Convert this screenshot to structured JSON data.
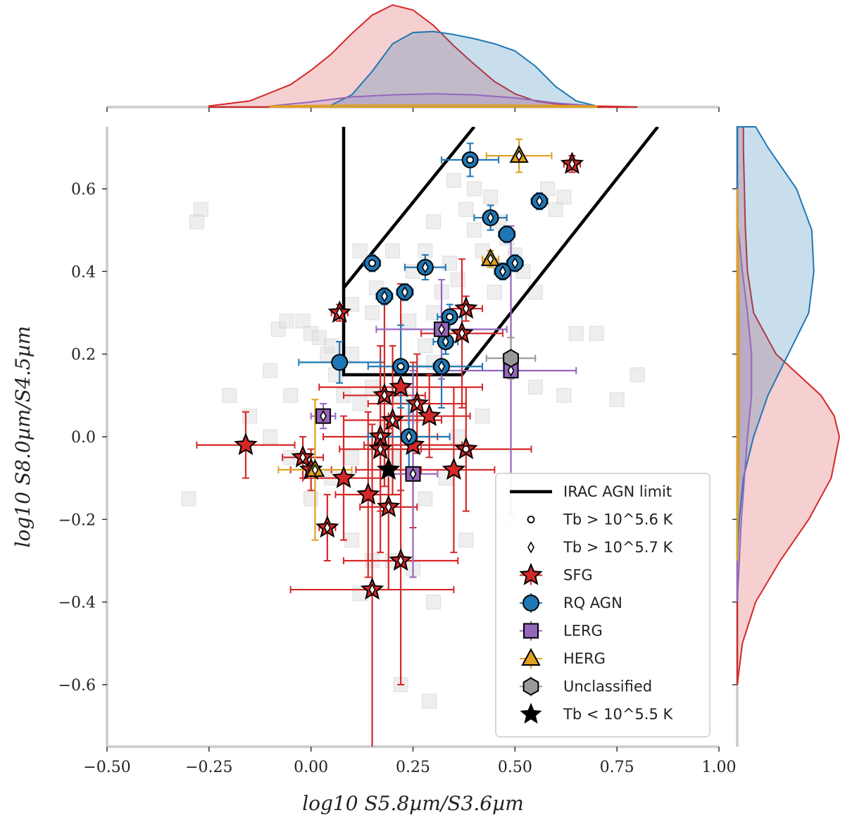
{
  "chart_data": {
    "type": "scatter",
    "xlabel": "log10 S5.8µm/S3.6µm",
    "ylabel": "log10 S8.0µm/S4.5µm",
    "xlim": [
      -0.5,
      1.0
    ],
    "ylim": [
      -0.75,
      0.75
    ],
    "x_ticks": [
      -0.5,
      -0.25,
      0.0,
      0.25,
      0.5,
      0.75,
      1.0
    ],
    "x_tick_labels": [
      "−0.50",
      "−0.25",
      "0.00",
      "0.25",
      "0.50",
      "0.75",
      "1.00"
    ],
    "y_ticks": [
      -0.6,
      -0.4,
      -0.2,
      0.0,
      0.2,
      0.4,
      0.6
    ],
    "y_tick_labels": [
      "−0.6",
      "−0.4",
      "−0.2",
      "0.0",
      "0.2",
      "0.4",
      "0.6"
    ],
    "grid": false,
    "legend_position": "bottom-right",
    "legend": [
      {
        "label": "IRAC AGN limit",
        "marker": "line"
      },
      {
        "label": "Tb > 10^5.6 K",
        "marker": "small-circle"
      },
      {
        "label": "Tb > 10^5.7 K",
        "marker": "small-diamond"
      },
      {
        "label": "SFG",
        "marker": "star",
        "color": "#d62728"
      },
      {
        "label": "RQ AGN",
        "marker": "circle",
        "color": "#1f77b4"
      },
      {
        "label": "LERG",
        "marker": "square",
        "color": "#9467bd"
      },
      {
        "label": "HERG",
        "marker": "triangle",
        "color": "#e0a020"
      },
      {
        "label": "Unclassified",
        "marker": "hexagon",
        "color": "#999999"
      },
      {
        "label": "Tb < 10^5.5 K",
        "marker": "black-star"
      }
    ],
    "agn_limit_line": [
      [
        0.08,
        0.75
      ],
      [
        0.08,
        0.36
      ],
      [
        0.08,
        0.15
      ],
      [
        0.37,
        0.15
      ],
      [
        0.85,
        0.75
      ]
    ],
    "agn_limit_upper": [
      [
        0.08,
        0.36
      ],
      [
        0.4,
        0.75
      ]
    ],
    "background_points": [
      [
        -0.3,
        -0.15
      ],
      [
        -0.27,
        0.55
      ],
      [
        -0.28,
        0.52
      ],
      [
        -0.1,
        0.16
      ],
      [
        -0.08,
        0.26
      ],
      [
        -0.06,
        0.28
      ],
      [
        -0.05,
        0.1
      ],
      [
        -0.02,
        0.28
      ],
      [
        0.0,
        0.25
      ],
      [
        0.02,
        0.24
      ],
      [
        0.04,
        0.2
      ],
      [
        0.06,
        0.15
      ],
      [
        0.08,
        0.1
      ],
      [
        0.1,
        0.2
      ],
      [
        0.12,
        0.08
      ],
      [
        0.15,
        0.12
      ],
      [
        0.18,
        0.02
      ],
      [
        0.2,
        -0.05
      ],
      [
        0.22,
        0.1
      ],
      [
        0.25,
        0.05
      ],
      [
        0.28,
        0.22
      ],
      [
        0.3,
        0.18
      ],
      [
        0.32,
        0.35
      ],
      [
        0.34,
        0.42
      ],
      [
        0.36,
        0.38
      ],
      [
        0.38,
        0.55
      ],
      [
        0.4,
        0.5
      ],
      [
        0.42,
        0.45
      ],
      [
        0.44,
        0.58
      ],
      [
        0.46,
        0.52
      ],
      [
        0.48,
        0.48
      ],
      [
        0.5,
        0.44
      ],
      [
        0.52,
        0.4
      ],
      [
        0.55,
        0.35
      ],
      [
        0.58,
        0.6
      ],
      [
        0.6,
        0.55
      ],
      [
        0.62,
        0.58
      ],
      [
        0.65,
        0.25
      ],
      [
        0.2,
        0.45
      ],
      [
        0.25,
        0.4
      ],
      [
        0.3,
        0.52
      ],
      [
        0.35,
        0.62
      ],
      [
        0.4,
        0.6
      ],
      [
        0.15,
        0.3
      ],
      [
        0.1,
        -0.05
      ],
      [
        0.05,
        -0.1
      ],
      [
        0.0,
        -0.15
      ],
      [
        -0.05,
        -0.05
      ],
      [
        -0.1,
        0.0
      ],
      [
        -0.15,
        0.05
      ],
      [
        -0.2,
        0.1
      ],
      [
        0.1,
        -0.25
      ],
      [
        0.15,
        -0.3
      ],
      [
        0.2,
        -0.3
      ],
      [
        0.25,
        -0.32
      ],
      [
        0.3,
        -0.4
      ],
      [
        0.22,
        -0.6
      ],
      [
        0.29,
        -0.64
      ],
      [
        0.12,
        -0.38
      ],
      [
        0.36,
        0.0
      ],
      [
        0.42,
        0.05
      ],
      [
        0.55,
        0.12
      ],
      [
        0.7,
        0.25
      ],
      [
        0.8,
        0.15
      ],
      [
        0.75,
        0.09
      ],
      [
        0.62,
        0.1
      ],
      [
        0.48,
        -0.2
      ],
      [
        0.38,
        -0.25
      ],
      [
        0.33,
        -0.1
      ],
      [
        0.28,
        -0.15
      ],
      [
        0.24,
        0.28
      ],
      [
        0.16,
        0.36
      ],
      [
        0.1,
        0.32
      ],
      [
        0.05,
        0.22
      ],
      [
        0.12,
        0.45
      ],
      [
        0.3,
        0.3
      ],
      [
        0.45,
        0.35
      ],
      [
        0.28,
        0.45
      ]
    ],
    "series": [
      {
        "name": "SFG",
        "marker": "star",
        "color": "#d62728",
        "points": [
          {
            "x": 0.64,
            "y": 0.66,
            "xe": 0.02,
            "ye": 0.02,
            "tb": "diamond"
          },
          {
            "x": -0.16,
            "y": -0.02,
            "xe": 0.12,
            "ye": 0.08
          },
          {
            "x": 0.07,
            "y": 0.3,
            "xe": 0.02,
            "ye": 0.02,
            "tb": "diamond"
          },
          {
            "x": 0.38,
            "y": 0.31,
            "xe": 0.04,
            "ye": 0.03,
            "tb": "diamond"
          },
          {
            "x": 0.37,
            "y": 0.25,
            "xe": 0.1,
            "ye": 0.18,
            "tb": "diamond"
          },
          {
            "x": 0.22,
            "y": 0.12,
            "xe": 0.2,
            "ye": 0.25
          },
          {
            "x": 0.18,
            "y": 0.1,
            "xe": 0.1,
            "ye": 0.22,
            "tb": "diamond"
          },
          {
            "x": 0.26,
            "y": 0.08,
            "xe": 0.12,
            "ye": 0.12,
            "tb": "diamond"
          },
          {
            "x": 0.29,
            "y": 0.05,
            "xe": 0.1,
            "ye": 0.1
          },
          {
            "x": 0.2,
            "y": 0.04,
            "xe": 0.12,
            "ye": 0.18,
            "tb": "diamond"
          },
          {
            "x": 0.17,
            "y": 0.0,
            "xe": 0.14,
            "ye": 0.18,
            "tb": "diamond"
          },
          {
            "x": 0.17,
            "y": -0.03,
            "xe": 0.1,
            "ye": 0.25,
            "tb": "diamond"
          },
          {
            "x": 0.25,
            "y": -0.02,
            "xe": 0.12,
            "ye": 0.2
          },
          {
            "x": 0.38,
            "y": -0.03,
            "xe": 0.16,
            "ye": 0.15,
            "tb": "circle"
          },
          {
            "x": 0.35,
            "y": -0.08,
            "xe": 0.1,
            "ye": 0.2
          },
          {
            "x": -0.02,
            "y": -0.05,
            "xe": 0.05,
            "ye": 0.05,
            "tb": "diamond"
          },
          {
            "x": 0.0,
            "y": -0.08,
            "xe": 0.05,
            "ye": 0.05,
            "tb": "diamond"
          },
          {
            "x": 0.08,
            "y": -0.1,
            "xe": 0.1,
            "ye": 0.15
          },
          {
            "x": 0.14,
            "y": -0.14,
            "xe": 0.08,
            "ye": 0.2
          },
          {
            "x": 0.19,
            "y": -0.17,
            "xe": 0.07,
            "ye": 0.2,
            "tb": "diamond"
          },
          {
            "x": 0.04,
            "y": -0.22,
            "xe": 0.02,
            "ye": 0.08,
            "tb": "diamond"
          },
          {
            "x": 0.22,
            "y": -0.3,
            "xe": 0.14,
            "ye": 0.3,
            "tb": "diamond"
          },
          {
            "x": 0.15,
            "y": -0.37,
            "xe": 0.2,
            "ye": 0.4,
            "tb": "diamond"
          },
          {
            "x": 0.19,
            "y": -0.08,
            "xe": 0.08,
            "ye": 0.1,
            "black": true
          }
        ]
      },
      {
        "name": "RQ AGN",
        "marker": "circle",
        "color": "#1f77b4",
        "points": [
          {
            "x": 0.39,
            "y": 0.67,
            "xe": 0.07,
            "ye": 0.04,
            "tb": "circle"
          },
          {
            "x": 0.56,
            "y": 0.57,
            "xe": 0.02,
            "ye": 0.02,
            "tb": "diamond"
          },
          {
            "x": 0.44,
            "y": 0.53,
            "xe": 0.04,
            "ye": 0.03,
            "tb": "diamond"
          },
          {
            "x": 0.48,
            "y": 0.49,
            "xe": 0.02,
            "ye": 0.02
          },
          {
            "x": 0.15,
            "y": 0.42,
            "xe": 0.02,
            "ye": 0.02,
            "tb": "circle"
          },
          {
            "x": 0.28,
            "y": 0.41,
            "xe": 0.05,
            "ye": 0.03,
            "tb": "diamond"
          },
          {
            "x": 0.5,
            "y": 0.42,
            "xe": 0.02,
            "ye": 0.02,
            "tb": "diamond"
          },
          {
            "x": 0.47,
            "y": 0.4,
            "xe": 0.02,
            "ye": 0.02,
            "tb": "diamond"
          },
          {
            "x": 0.18,
            "y": 0.34,
            "xe": 0.02,
            "ye": 0.02,
            "tb": "diamond"
          },
          {
            "x": 0.23,
            "y": 0.35,
            "xe": 0.02,
            "ye": 0.02,
            "tb": "diamond"
          },
          {
            "x": 0.34,
            "y": 0.29,
            "xe": 0.03,
            "ye": 0.03,
            "tb": "circle"
          },
          {
            "x": 0.33,
            "y": 0.23,
            "xe": 0.03,
            "ye": 0.03,
            "tb": "diamond"
          },
          {
            "x": 0.07,
            "y": 0.18,
            "xe": 0.1,
            "ye": 0.05
          },
          {
            "x": 0.22,
            "y": 0.17,
            "xe": 0.08,
            "ye": 0.1,
            "tb": "circle"
          },
          {
            "x": 0.32,
            "y": 0.17,
            "xe": 0.1,
            "ye": 0.1,
            "tb": "diamond"
          },
          {
            "x": 0.24,
            "y": 0.0,
            "xe": 0.1,
            "ye": 0.08,
            "tb": "diamond"
          }
        ]
      },
      {
        "name": "LERG",
        "marker": "square",
        "color": "#9467bd",
        "points": [
          {
            "x": 0.32,
            "y": 0.26,
            "xe": 0.16,
            "ye": 0.12,
            "tb": "diamond"
          },
          {
            "x": 0.49,
            "y": 0.16,
            "xe": 0.16,
            "ye": 0.35,
            "tb": "diamond"
          },
          {
            "x": 0.03,
            "y": 0.05,
            "xe": 0.03,
            "ye": 0.03,
            "tb": "diamond"
          },
          {
            "x": 0.25,
            "y": -0.09,
            "xe": 0.06,
            "ye": 0.25,
            "tb": "diamond"
          }
        ]
      },
      {
        "name": "HERG",
        "marker": "triangle",
        "color": "#e0a020",
        "points": [
          {
            "x": 0.51,
            "y": 0.68,
            "xe": 0.08,
            "ye": 0.04,
            "tb": "diamond"
          },
          {
            "x": 0.44,
            "y": 0.43,
            "xe": 0.02,
            "ye": 0.02,
            "tb": "diamond"
          },
          {
            "x": 0.01,
            "y": -0.08,
            "xe": 0.09,
            "ye": 0.17,
            "tb": "diamond"
          }
        ]
      },
      {
        "name": "Unclassified",
        "marker": "hexagon",
        "color": "#999999",
        "points": [
          {
            "x": 0.49,
            "y": 0.19,
            "xe": 0.06,
            "ye": 0.05
          }
        ]
      }
    ],
    "kde_top": [
      {
        "name": "SFG",
        "color": "#d62728",
        "fill": "rgba(214,39,40,0.22)",
        "x": [
          -0.25,
          -0.15,
          -0.05,
          0.0,
          0.05,
          0.1,
          0.15,
          0.2,
          0.25,
          0.3,
          0.35,
          0.4,
          0.45,
          0.5,
          0.55,
          0.6,
          0.7,
          0.8
        ],
        "d": [
          0.01,
          0.06,
          0.22,
          0.36,
          0.52,
          0.72,
          0.9,
          1.0,
          0.95,
          0.8,
          0.6,
          0.42,
          0.25,
          0.13,
          0.06,
          0.03,
          0.01,
          0.0
        ]
      },
      {
        "name": "RQ AGN",
        "color": "#1f77b4",
        "fill": "rgba(31,119,180,0.24)",
        "x": [
          0.05,
          0.1,
          0.15,
          0.2,
          0.25,
          0.3,
          0.35,
          0.4,
          0.45,
          0.5,
          0.55,
          0.6,
          0.65,
          0.7
        ],
        "d": [
          0.02,
          0.12,
          0.35,
          0.62,
          0.73,
          0.74,
          0.71,
          0.67,
          0.62,
          0.55,
          0.4,
          0.2,
          0.06,
          0.01
        ]
      },
      {
        "name": "LERG",
        "color": "#9467bd",
        "fill": "rgba(148,103,189,0.18)",
        "x": [
          -0.1,
          0.0,
          0.1,
          0.2,
          0.3,
          0.4,
          0.5,
          0.6,
          0.7
        ],
        "d": [
          0.01,
          0.05,
          0.1,
          0.12,
          0.13,
          0.12,
          0.09,
          0.04,
          0.01
        ]
      },
      {
        "name": "HERG",
        "color": "#e0a020",
        "fill": "rgba(224,160,32,0.14)",
        "x": [
          -0.1,
          0.1,
          0.3,
          0.5,
          0.7
        ],
        "d": [
          0.01,
          0.02,
          0.02,
          0.02,
          0.01
        ]
      }
    ],
    "kde_right": [
      {
        "name": "SFG",
        "color": "#d62728",
        "fill": "rgba(214,39,40,0.22)",
        "y": [
          -0.6,
          -0.5,
          -0.4,
          -0.3,
          -0.2,
          -0.1,
          0.0,
          0.05,
          0.1,
          0.15,
          0.2,
          0.3,
          0.4,
          0.5,
          0.6,
          0.7,
          0.75
        ],
        "d": [
          0.0,
          0.05,
          0.18,
          0.42,
          0.7,
          0.92,
          1.0,
          0.95,
          0.82,
          0.6,
          0.38,
          0.16,
          0.1,
          0.08,
          0.07,
          0.06,
          0.06
        ]
      },
      {
        "name": "RQ AGN",
        "color": "#1f77b4",
        "fill": "rgba(31,119,180,0.24)",
        "y": [
          -0.3,
          -0.2,
          -0.1,
          0.0,
          0.1,
          0.2,
          0.3,
          0.4,
          0.5,
          0.6,
          0.7,
          0.75
        ],
        "d": [
          0.0,
          0.02,
          0.06,
          0.16,
          0.3,
          0.5,
          0.7,
          0.75,
          0.73,
          0.58,
          0.3,
          0.18
        ]
      },
      {
        "name": "LERG",
        "color": "#9467bd",
        "fill": "rgba(148,103,189,0.18)",
        "y": [
          -0.4,
          -0.2,
          0.0,
          0.1,
          0.2,
          0.3,
          0.4,
          0.5
        ],
        "d": [
          0.0,
          0.04,
          0.1,
          0.14,
          0.14,
          0.1,
          0.05,
          0.01
        ]
      },
      {
        "name": "HERG",
        "color": "#e0a020",
        "fill": "rgba(224,160,32,0.14)",
        "y": [
          -0.3,
          0.0,
          0.3,
          0.6
        ],
        "d": [
          0.0,
          0.02,
          0.02,
          0.0
        ]
      }
    ]
  }
}
